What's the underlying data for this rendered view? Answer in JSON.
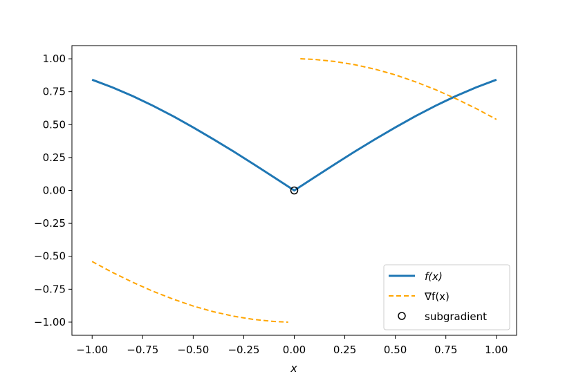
{
  "chart_data": {
    "type": "line",
    "title": "",
    "xlabel": "x",
    "ylabel": "",
    "xlim": [
      -1.1,
      1.1
    ],
    "ylim": [
      -1.1,
      1.1
    ],
    "xticks": [
      -1.0,
      -0.75,
      -0.5,
      -0.25,
      0.0,
      0.25,
      0.5,
      0.75,
      1.0
    ],
    "xtick_labels": [
      "−1.00",
      "−0.75",
      "−0.50",
      "−0.25",
      "0.00",
      "0.25",
      "0.50",
      "0.75",
      "1.00"
    ],
    "yticks": [
      1.0,
      0.75,
      0.5,
      0.25,
      0.0,
      -0.25,
      -0.5,
      -0.75,
      -1.0
    ],
    "ytick_labels": [
      "1.00",
      "0.75",
      "0.50",
      "0.25",
      "0.00",
      "−0.25",
      "−0.50",
      "−0.75",
      "−1.00"
    ],
    "grid": false,
    "legend_position": "bottom-right",
    "series": [
      {
        "name": "f(x)",
        "style": "solid",
        "color": "#1f77b4",
        "points": [
          [
            -1.0,
            0.841
          ],
          [
            -0.9,
            0.783
          ],
          [
            -0.8,
            0.717
          ],
          [
            -0.7,
            0.644
          ],
          [
            -0.6,
            0.565
          ],
          [
            -0.5,
            0.479
          ],
          [
            -0.4,
            0.389
          ],
          [
            -0.3,
            0.296
          ],
          [
            -0.2,
            0.199
          ],
          [
            -0.1,
            0.1
          ],
          [
            0.0,
            0.0
          ],
          [
            0.1,
            0.1
          ],
          [
            0.2,
            0.199
          ],
          [
            0.3,
            0.296
          ],
          [
            0.4,
            0.389
          ],
          [
            0.5,
            0.479
          ],
          [
            0.6,
            0.565
          ],
          [
            0.7,
            0.644
          ],
          [
            0.8,
            0.717
          ],
          [
            0.9,
            0.783
          ],
          [
            1.0,
            0.841
          ]
        ]
      },
      {
        "name": "∇f(x)",
        "style": "dashed",
        "color": "#ffa500",
        "segments": [
          [
            [
              -1.0,
              -0.54
            ],
            [
              -0.9,
              -0.622
            ],
            [
              -0.8,
              -0.697
            ],
            [
              -0.7,
              -0.765
            ],
            [
              -0.6,
              -0.825
            ],
            [
              -0.5,
              -0.878
            ],
            [
              -0.4,
              -0.921
            ],
            [
              -0.3,
              -0.955
            ],
            [
              -0.2,
              -0.98
            ],
            [
              -0.1,
              -0.995
            ],
            [
              -0.03,
              -1.0
            ]
          ],
          [
            [
              0.03,
              1.0
            ],
            [
              0.1,
              0.995
            ],
            [
              0.2,
              0.98
            ],
            [
              0.3,
              0.955
            ],
            [
              0.4,
              0.921
            ],
            [
              0.5,
              0.878
            ],
            [
              0.6,
              0.825
            ],
            [
              0.7,
              0.765
            ],
            [
              0.8,
              0.697
            ],
            [
              0.9,
              0.622
            ],
            [
              1.0,
              0.54
            ]
          ]
        ]
      },
      {
        "name": "subgradient",
        "style": "marker",
        "color": "#000000",
        "points": [
          [
            0.0,
            0.0
          ]
        ]
      }
    ],
    "legend": [
      {
        "label": "f(x)"
      },
      {
        "label": "∇f(x)"
      },
      {
        "label": "subgradient"
      }
    ]
  }
}
